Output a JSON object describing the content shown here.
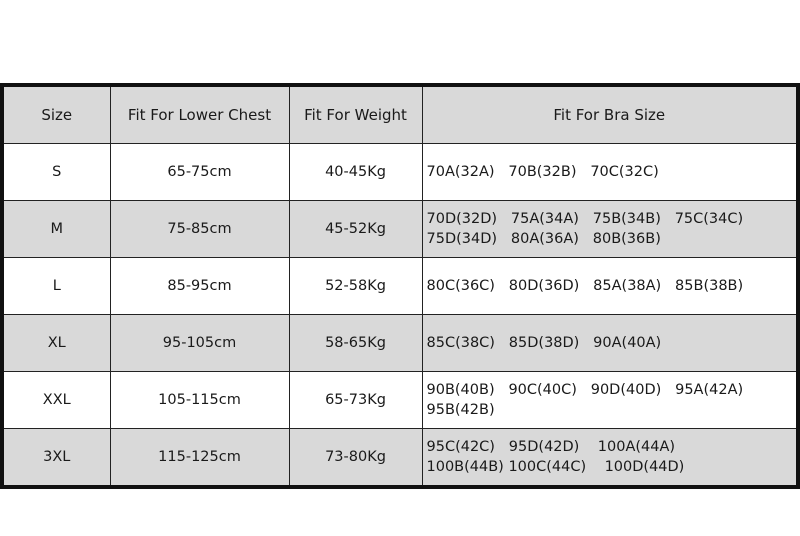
{
  "headers": [
    "Size",
    "Fit For Lower Chest",
    "Fit For Weight",
    "Fit For Bra Size"
  ],
  "rows": [
    {
      "size": "S",
      "chest": "65-75cm",
      "weight": "40-45Kg",
      "bra": [
        "70A(32A)   70B(32B)   70C(32C)"
      ]
    },
    {
      "size": "M",
      "chest": "75-85cm",
      "weight": "45-52Kg",
      "bra": [
        "70D(32D)   75A(34A)   75B(34B)   75C(34C)",
        "75D(34D)   80A(36A)   80B(36B)"
      ]
    },
    {
      "size": "L",
      "chest": "85-95cm",
      "weight": "52-58Kg",
      "bra": [
        "80C(36C)   80D(36D)   85A(38A)   85B(38B)"
      ]
    },
    {
      "size": "XL",
      "chest": "95-105cm",
      "weight": "58-65Kg",
      "bra": [
        "85C(38C)   85D(38D)   90A(40A)"
      ]
    },
    {
      "size": "XXL",
      "chest": "105-115cm",
      "weight": "65-73Kg",
      "bra": [
        "90B(40B)   90C(40C)   90D(40D)   95A(42A)",
        "95B(42B)"
      ]
    },
    {
      "size": "3XL",
      "chest": "115-125cm",
      "weight": "73-80Kg",
      "bra": [
        "95C(42C)   95D(42D)    100A(44A)",
        "100B(44B) 100C(44C)    100D(44D)"
      ]
    }
  ],
  "colors": {
    "header_bg": "#d9d9d9",
    "alt_row_bg": "#d9d9d9",
    "border": "#111111"
  }
}
